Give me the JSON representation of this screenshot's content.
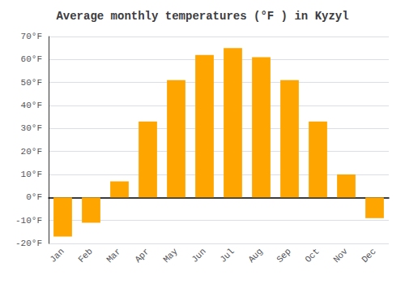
{
  "chart_data": {
    "type": "bar",
    "title": "Average monthly temperatures (°F ) in Kyzyl",
    "categories": [
      "Jan",
      "Feb",
      "Mar",
      "Apr",
      "May",
      "Jun",
      "Jul",
      "Aug",
      "Sep",
      "Oct",
      "Nov",
      "Dec"
    ],
    "values": [
      -17,
      -11,
      7,
      33,
      51,
      62,
      65,
      61,
      51,
      33,
      10,
      -9
    ],
    "color": "#FFA500",
    "ylim": [
      -20,
      70
    ],
    "yticks": [
      {
        "value": -20,
        "label": "-20°F"
      },
      {
        "value": -10,
        "label": "-10°F"
      },
      {
        "value": 0,
        "label": "0°F"
      },
      {
        "value": 10,
        "label": "10°F"
      },
      {
        "value": 20,
        "label": "20°F"
      },
      {
        "value": 30,
        "label": "30°F"
      },
      {
        "value": 40,
        "label": "40°F"
      },
      {
        "value": 50,
        "label": "50°F"
      },
      {
        "value": 60,
        "label": "60°F"
      },
      {
        "value": 70,
        "label": "70°F"
      }
    ],
    "grid": true
  }
}
